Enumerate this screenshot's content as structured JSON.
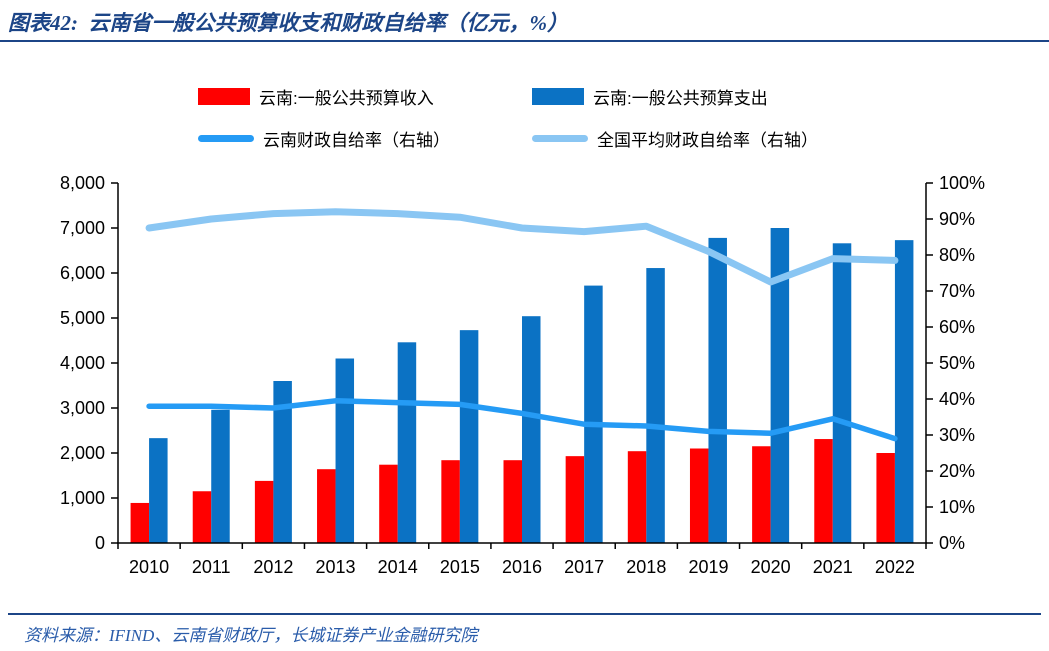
{
  "header": {
    "title": "图表42:  云南省一般公共预算收支和财政自给率（亿元，%）"
  },
  "footer": {
    "source": "资料来源：IFIND、云南省财政厅，长城证券产业金融研究院"
  },
  "chart_data": {
    "type": "combo (grouped bars + lines, dual axis)",
    "title": "云南省一般公共预算收支和财政自给率（亿元，%）",
    "categories": [
      "2010",
      "2011",
      "2012",
      "2013",
      "2014",
      "2015",
      "2016",
      "2017",
      "2018",
      "2019",
      "2020",
      "2021",
      "2022"
    ],
    "series": [
      {
        "name": "云南:一般公共预算收入",
        "type": "bar",
        "axis": "left",
        "color": "#FF0000",
        "values": [
          890,
          1150,
          1380,
          1640,
          1740,
          1840,
          1840,
          1930,
          2040,
          2100,
          2150,
          2310,
          2000
        ]
      },
      {
        "name": "云南:一般公共预算支出",
        "type": "bar",
        "axis": "left",
        "color": "#0B72C4",
        "values": [
          2330,
          2960,
          3600,
          4100,
          4460,
          4730,
          5040,
          5720,
          6110,
          6780,
          7000,
          6660,
          6730
        ]
      },
      {
        "name": "云南财政自给率（右轴）",
        "type": "line",
        "axis": "right",
        "color": "#259BF5",
        "values": [
          38,
          38,
          37.5,
          39.5,
          39,
          38.5,
          36,
          33,
          32.5,
          31,
          30.5,
          34.5,
          29
        ]
      },
      {
        "name": "全国平均财政自给率（右轴）",
        "type": "line",
        "axis": "right",
        "color": "#8AC6F3",
        "values": [
          87.5,
          90,
          91.5,
          92,
          91.5,
          90.5,
          87.5,
          86.5,
          88,
          81,
          72.5,
          79,
          78.5
        ]
      }
    ],
    "left_axis": {
      "min": 0,
      "max": 8000,
      "step": 1000,
      "tick_labels": [
        "0",
        "1,000",
        "2,000",
        "3,000",
        "4,000",
        "5,000",
        "6,000",
        "7,000",
        "8,000"
      ]
    },
    "right_axis": {
      "min": 0,
      "max": 100,
      "step": 10,
      "tick_labels": [
        "0%",
        "10%",
        "20%",
        "30%",
        "40%",
        "50%",
        "60%",
        "70%",
        "80%",
        "90%",
        "100%"
      ]
    },
    "layout": {
      "grid": "off",
      "legend_position": "top",
      "legend_rows": 2
    }
  }
}
